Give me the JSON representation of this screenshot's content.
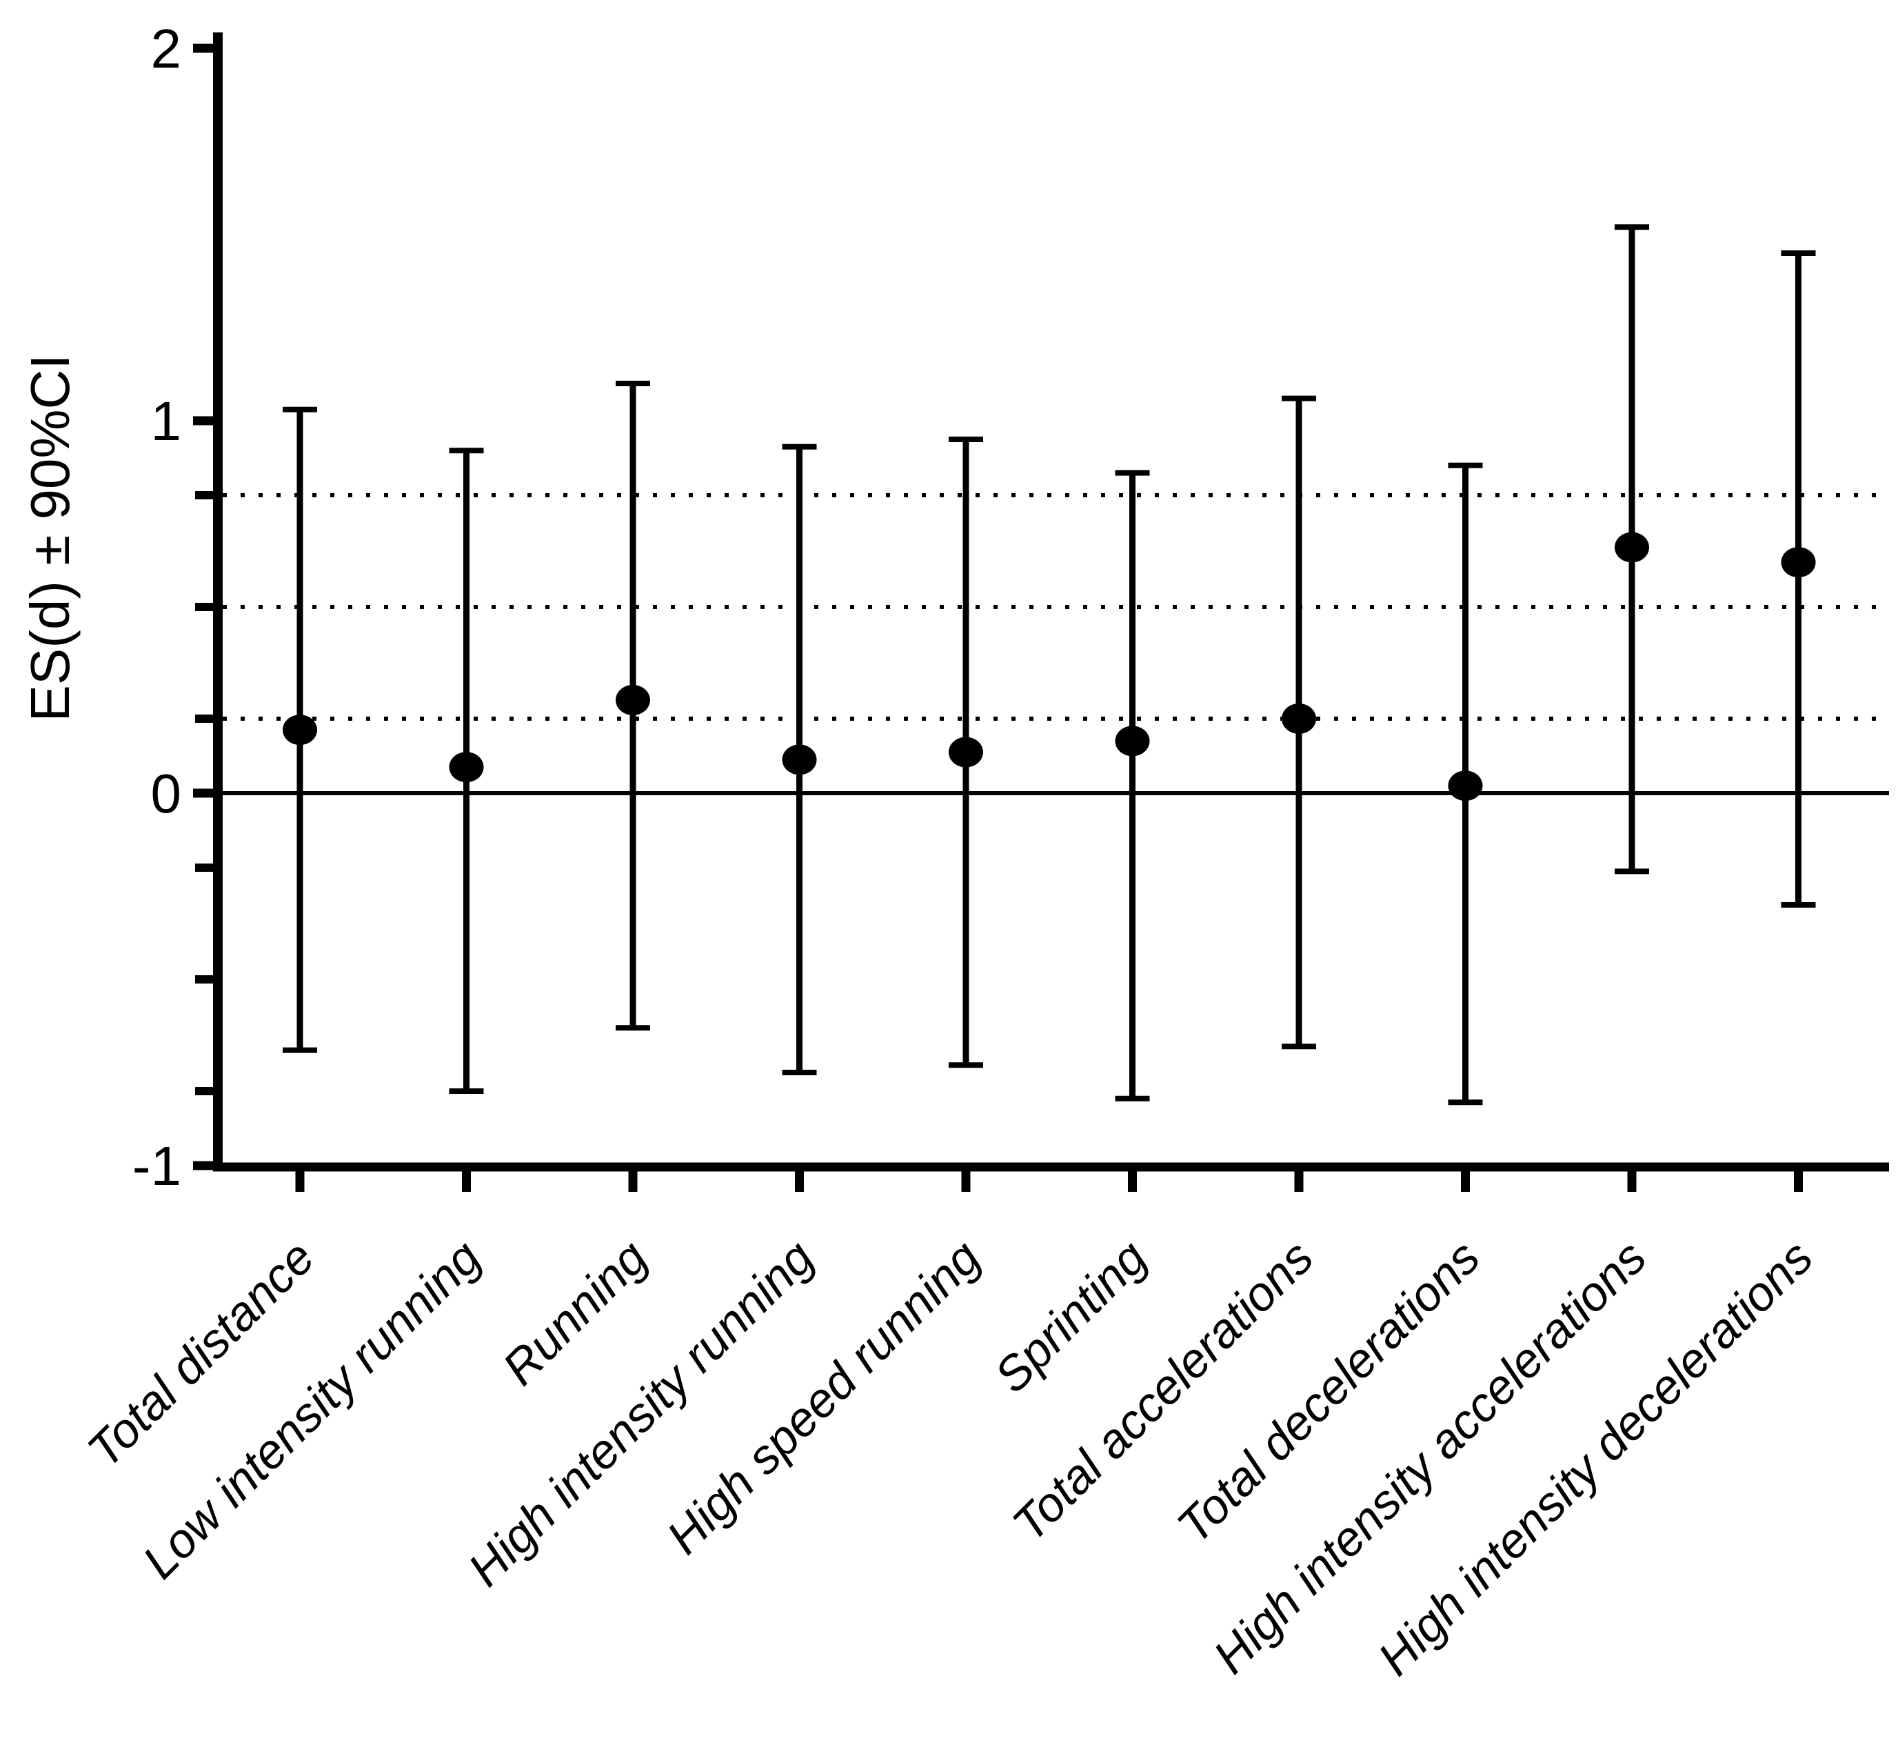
{
  "chart_data": {
    "type": "scatter",
    "title": "",
    "xlabel": "",
    "ylabel": "ES(d) ± 90%CI",
    "ylim": [
      -1,
      2
    ],
    "yticks": [
      2,
      1,
      0,
      -1
    ],
    "ytick_labels": [
      "2",
      "1",
      "0",
      "-1"
    ],
    "minor_yticks": [
      0.8,
      0.5,
      0.2,
      -0.2,
      -0.5,
      -0.8
    ],
    "reference_lines": {
      "solid": [
        0
      ],
      "dotted": [
        0.2,
        0.5,
        0.8
      ]
    },
    "grid": "off (dotted horizontal threshold lines at 0.2, 0.5, 0.8 and solid line at 0)",
    "legend_position": "none",
    "marker": "filled black circle",
    "error_bar_meaning": "90% confidence interval",
    "categories": [
      "Total distance",
      "Low intensity running",
      "Running",
      "High intensity running",
      "High speed running",
      "Sprinting",
      "Total accelerations",
      "Total decelerations",
      "High intensity accelerations",
      "High intensity decelerations"
    ],
    "series": [
      {
        "name": "ES(d) ± 90%CI",
        "values": [
          0.17,
          0.07,
          0.25,
          0.09,
          0.11,
          0.14,
          0.2,
          0.02,
          0.66,
          0.62
        ],
        "ci_low": [
          -0.69,
          -0.8,
          -0.63,
          -0.75,
          -0.73,
          -0.82,
          -0.68,
          -0.83,
          -0.21,
          -0.3
        ],
        "ci_high": [
          1.03,
          0.92,
          1.1,
          0.93,
          0.95,
          0.86,
          1.06,
          0.88,
          1.52,
          1.45
        ]
      }
    ]
  },
  "colors": {
    "foreground": "#000000",
    "background": "#ffffff"
  }
}
